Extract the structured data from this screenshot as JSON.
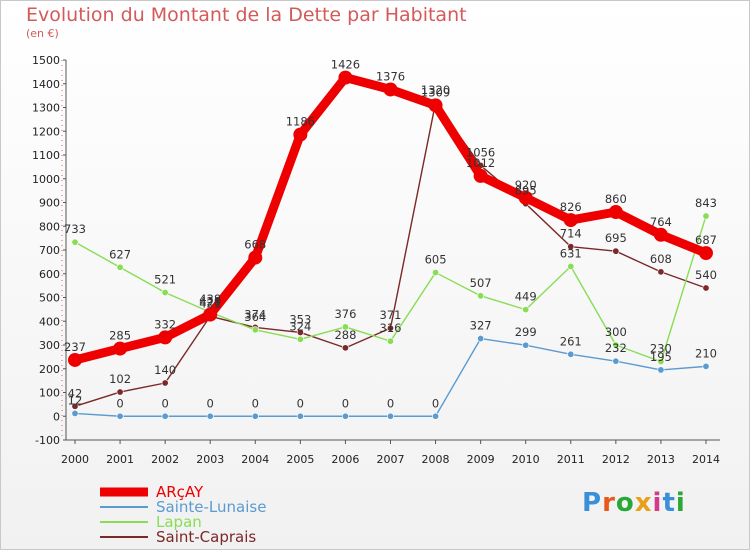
{
  "header": {
    "title": "Evolution du Montant de la Dette par Habitant",
    "subtitle": "(en €)"
  },
  "logo": {
    "text": "Proxiti",
    "colors": [
      "#3a8fd9",
      "#e85a1a",
      "#2aa836",
      "#e8a019",
      "#d33a8a",
      "#3a8fd9",
      "#2aa836"
    ]
  },
  "chart_data": {
    "type": "line",
    "title": "Evolution du Montant de la Dette par Habitant",
    "subtitle": "(en €)",
    "x": [
      "2000",
      "2001",
      "2002",
      "2003",
      "2004",
      "2005",
      "2006",
      "2007",
      "2008",
      "2009",
      "2010",
      "2011",
      "2012",
      "2013",
      "2014"
    ],
    "ylim": [
      -100,
      1500
    ],
    "yticks": [
      "-100",
      "0",
      "100",
      "200",
      "300",
      "400",
      "500",
      "600",
      "700",
      "800",
      "900",
      "1000",
      "1100",
      "1200",
      "1300",
      "1400",
      "1500"
    ],
    "grid": false,
    "legend_position": "bottom-left",
    "series": [
      {
        "name": "ARçAY",
        "color": "#ee0000",
        "values": [
          237,
          285,
          332,
          428,
          668,
          1186,
          1426,
          1376,
          1309,
          1012,
          920,
          826,
          860,
          764,
          687
        ],
        "labels": [
          "237",
          "285",
          "332",
          "428",
          "668",
          "1186",
          "1426",
          "1376",
          "1309",
          "1012",
          "920",
          "826",
          "860",
          "764",
          "687"
        ]
      },
      {
        "name": "Sainte-Lunaise",
        "color": "#5b9bd0",
        "values": [
          12,
          0,
          0,
          0,
          0,
          0,
          0,
          0,
          0,
          327,
          299,
          261,
          232,
          195,
          210
        ],
        "labels": [
          "12",
          "0",
          "0",
          "0",
          "0",
          "0",
          "0",
          "0",
          "0",
          "327",
          "299",
          "261",
          "232",
          "195",
          "210"
        ]
      },
      {
        "name": "Lapan",
        "color": "#88dd55",
        "values": [
          733,
          627,
          521,
          438,
          364,
          324,
          376,
          316,
          605,
          507,
          449,
          631,
          300,
          230,
          843
        ],
        "labels": [
          "733",
          "627",
          "521",
          "438",
          "364",
          "324",
          "376",
          "316",
          "605",
          "507",
          "449",
          "631",
          "300",
          "230",
          "843"
        ]
      },
      {
        "name": "Saint-Caprais",
        "color": "#7a2828",
        "values": [
          42,
          102,
          140,
          421,
          374,
          353,
          288,
          371,
          1320,
          1056,
          895,
          714,
          695,
          608,
          540
        ],
        "labels": [
          "42",
          "102",
          "140",
          "421",
          "374",
          "353",
          "288",
          "371",
          "1320",
          "1056",
          "895",
          "714",
          "695",
          "608",
          "540"
        ]
      }
    ]
  }
}
